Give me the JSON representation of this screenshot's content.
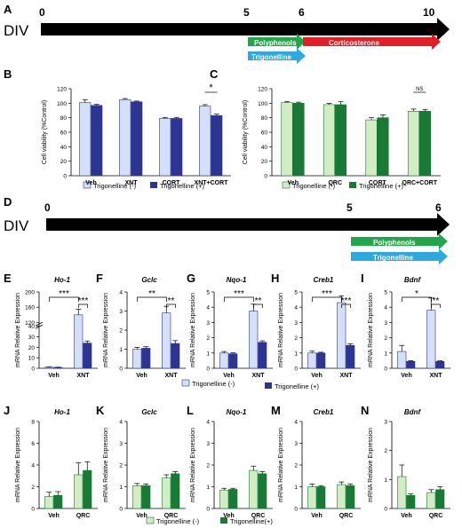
{
  "colors": {
    "lightBlue": "#d4e0f7",
    "darkBlue": "#2d3593",
    "lightGreen": "#d2ecc4",
    "darkGreen": "#177a35",
    "polyphenols": "#22a64a",
    "trigonelline": "#2ea9df",
    "corticosterone": "#e41e26",
    "axis": "#000000"
  },
  "timeline_top": {
    "panel": "A",
    "label": "DIV",
    "ticks": [
      "0",
      "5",
      "6",
      "10"
    ],
    "bars": {
      "polyphenols": "Polyphenols",
      "corticosterone": "Corticosterone",
      "trigonelline": "Trigonelline"
    }
  },
  "timeline_mid": {
    "panel": "D",
    "label": "DIV",
    "ticks": [
      "0",
      "5",
      "6"
    ],
    "bars": {
      "polyphenols": "Polyphenols",
      "trigonelline": "Trigonelline"
    }
  },
  "legends": {
    "blue": {
      "neg": "Trigonelline (-)",
      "pos": "Trigonelline (+)"
    },
    "green_C": {
      "neg": "Trigonelline (-)",
      "pos": "Trigonelline (+)"
    },
    "green_bottom": {
      "neg": "Trigonelline (-)",
      "pos": "Trigonelline(+)"
    }
  },
  "chart_data": [
    {
      "panel": "B",
      "type": "bar",
      "palette": "blue",
      "ylabel": "Cell viability (%Control)",
      "ylim": [
        0,
        120
      ],
      "yticks": [
        "0",
        "20",
        "40",
        "60",
        "80",
        "100",
        "120"
      ],
      "categories": [
        "Veh",
        "XNT",
        "CORT",
        "XNT+CORT"
      ],
      "series": [
        {
          "name": "Trigonelline (-)",
          "values": [
            101,
            105,
            79,
            96
          ],
          "errors": [
            4,
            1.5,
            1.5,
            2
          ]
        },
        {
          "name": "Trigonelline (+)",
          "values": [
            97,
            102,
            79,
            83
          ],
          "errors": [
            1.5,
            1,
            1.5,
            2
          ]
        }
      ],
      "annotations": [
        {
          "cat": 3,
          "text": "*"
        }
      ]
    },
    {
      "panel": "C",
      "type": "bar",
      "palette": "green",
      "ylabel": "Cell viability (%Control)",
      "ylim": [
        0,
        120
      ],
      "yticks": [
        "0",
        "20",
        "40",
        "60",
        "80",
        "100",
        "120"
      ],
      "categories": [
        "Veh",
        "QRC",
        "CORT",
        "QRC+CORT"
      ],
      "series": [
        {
          "name": "Trigonelline (-)",
          "values": [
            101,
            98,
            77,
            89
          ],
          "errors": [
            1.5,
            2,
            3,
            3
          ]
        },
        {
          "name": "Trigonelline (+)",
          "values": [
            100,
            98,
            80,
            89
          ],
          "errors": [
            1.5,
            4,
            4,
            2.5
          ]
        }
      ],
      "annotations": [
        {
          "cat": 3,
          "text": "NS"
        }
      ]
    },
    {
      "panel": "E",
      "type": "bar",
      "palette": "blue",
      "gene": "Ho-1",
      "ylabel": "mRNA Relative Expression",
      "ylim": [
        0,
        200
      ],
      "yticks": [
        "0",
        "10",
        "20",
        "30",
        "40",
        "120",
        "160",
        "200"
      ],
      "broken_axis": true,
      "categories": [
        "Veh",
        "XNT"
      ],
      "series": [
        {
          "name": "Trigonelline (-)",
          "values": [
            1,
            140
          ],
          "errors": [
            0.3,
            15
          ]
        },
        {
          "name": "Trigonelline (+)",
          "values": [
            0.8,
            24
          ],
          "errors": [
            0.2,
            2
          ]
        }
      ],
      "annotations": [
        {
          "text": "***"
        },
        {
          "text": "***"
        }
      ]
    },
    {
      "panel": "F",
      "type": "bar",
      "palette": "blue",
      "gene": "Gclc",
      "ylabel": "mRNA Relative Expression",
      "ylim": [
        0,
        4
      ],
      "yticks": [
        "0",
        "1",
        "2",
        "3",
        "4"
      ],
      "categories": [
        "Veh",
        "XNT"
      ],
      "series": [
        {
          "name": "Trigonelline (-)",
          "values": [
            1.0,
            2.9
          ],
          "errors": [
            0.1,
            0.35
          ]
        },
        {
          "name": "Trigonelline (+)",
          "values": [
            1.05,
            1.3
          ],
          "errors": [
            0.08,
            0.15
          ]
        }
      ],
      "annotations": [
        {
          "text": "**"
        },
        {
          "text": "**"
        }
      ]
    },
    {
      "panel": "G",
      "type": "bar",
      "palette": "blue",
      "gene": "Nqo-1",
      "ylabel": "mRNA Relative Expression",
      "ylim": [
        0,
        5
      ],
      "yticks": [
        "0",
        "1",
        "2",
        "3",
        "4",
        "5"
      ],
      "categories": [
        "Veh",
        "XNT"
      ],
      "series": [
        {
          "name": "Trigonelline (-)",
          "values": [
            1.0,
            3.75
          ],
          "errors": [
            0.1,
            0.45
          ]
        },
        {
          "name": "Trigonelline (+)",
          "values": [
            0.95,
            1.7
          ],
          "errors": [
            0.06,
            0.1
          ]
        }
      ],
      "annotations": [
        {
          "text": "***"
        },
        {
          "text": "**"
        }
      ]
    },
    {
      "panel": "H",
      "type": "bar",
      "palette": "blue",
      "gene": "Creb1",
      "ylabel": "mRNA Relative Expression",
      "ylim": [
        0,
        5
      ],
      "yticks": [
        "0",
        "1",
        "2",
        "3",
        "4",
        "5"
      ],
      "categories": [
        "Veh",
        "XNT"
      ],
      "series": [
        {
          "name": "Trigonelline (-)",
          "values": [
            1.0,
            4.3
          ],
          "errors": [
            0.12,
            0.45
          ]
        },
        {
          "name": "Trigonelline (+)",
          "values": [
            1.0,
            1.5
          ],
          "errors": [
            0.05,
            0.1
          ]
        }
      ],
      "annotations": [
        {
          "text": "***"
        },
        {
          "text": "***"
        }
      ]
    },
    {
      "panel": "I",
      "type": "bar",
      "palette": "blue",
      "gene": "Bdnf",
      "ylabel": "mRNA Relative Expression",
      "ylim": [
        0,
        5
      ],
      "yticks": [
        "0",
        "1",
        "2",
        "3",
        "4",
        "5"
      ],
      "categories": [
        "Veh",
        "XNT"
      ],
      "series": [
        {
          "name": "Trigonelline (-)",
          "values": [
            1.1,
            3.8
          ],
          "errors": [
            0.4,
            0.8
          ]
        },
        {
          "name": "Trigonelline (+)",
          "values": [
            0.45,
            0.45
          ],
          "errors": [
            0.05,
            0.04
          ]
        }
      ],
      "annotations": [
        {
          "text": "*"
        },
        {
          "text": "**"
        }
      ]
    },
    {
      "panel": "J",
      "type": "bar",
      "palette": "green",
      "gene": "Ho-1",
      "ylabel": "mRNA Relative Expression",
      "ylim": [
        0,
        8
      ],
      "yticks": [
        "0",
        "2",
        "4",
        "6",
        "8"
      ],
      "categories": [
        "Veh",
        "QRC"
      ],
      "series": [
        {
          "name": "Trigonelline (-)",
          "values": [
            1.1,
            3.1
          ],
          "errors": [
            0.4,
            1.1
          ]
        },
        {
          "name": "Trigonelline(+)",
          "values": [
            1.2,
            3.5
          ],
          "errors": [
            0.35,
            0.8
          ]
        }
      ]
    },
    {
      "panel": "K",
      "type": "bar",
      "palette": "green",
      "gene": "Gclc",
      "ylabel": "mRNA Relative Expression",
      "ylim": [
        0,
        4
      ],
      "yticks": [
        "0",
        "1",
        "2",
        "3",
        "4"
      ],
      "categories": [
        "Veh",
        "QRC"
      ],
      "series": [
        {
          "name": "Trigonelline (-)",
          "values": [
            1.05,
            1.4
          ],
          "errors": [
            0.1,
            0.15
          ]
        },
        {
          "name": "Trigonelline(+)",
          "values": [
            1.05,
            1.6
          ],
          "errors": [
            0.08,
            0.1
          ]
        }
      ]
    },
    {
      "panel": "L",
      "type": "bar",
      "palette": "green",
      "gene": "Nqo-1",
      "ylabel": "mRNA Relative Expression",
      "ylim": [
        0,
        4
      ],
      "yticks": [
        "0",
        "1",
        "2",
        "3",
        "4"
      ],
      "categories": [
        "Veh",
        "QRC"
      ],
      "series": [
        {
          "name": "Trigonelline (-)",
          "values": [
            0.85,
            1.75
          ],
          "errors": [
            0.08,
            0.2
          ]
        },
        {
          "name": "Trigonelline(+)",
          "values": [
            0.88,
            1.6
          ],
          "errors": [
            0.05,
            0.1
          ]
        }
      ]
    },
    {
      "panel": "M",
      "type": "bar",
      "palette": "green",
      "gene": "Creb1",
      "ylabel": "mRNA Relative Expression",
      "ylim": [
        0,
        4
      ],
      "yticks": [
        "0",
        "1",
        "2",
        "3",
        "4"
      ],
      "categories": [
        "Veh",
        "QRC"
      ],
      "series": [
        {
          "name": "Trigonelline (-)",
          "values": [
            1.0,
            1.1
          ],
          "errors": [
            0.12,
            0.12
          ]
        },
        {
          "name": "Trigonelline(+)",
          "values": [
            1.0,
            1.05
          ],
          "errors": [
            0.05,
            0.08
          ]
        }
      ]
    },
    {
      "panel": "N",
      "type": "bar",
      "palette": "green",
      "gene": "Bdnf",
      "ylabel": "mRNA Relative Expression",
      "ylim": [
        0,
        3
      ],
      "yticks": [
        "0",
        "1",
        "2",
        "3"
      ],
      "categories": [
        "Veh",
        "QRC"
      ],
      "series": [
        {
          "name": "Trigonelline (-)",
          "values": [
            1.1,
            0.55
          ],
          "errors": [
            0.4,
            0.1
          ]
        },
        {
          "name": "Trigonelline(+)",
          "values": [
            0.45,
            0.65
          ],
          "errors": [
            0.05,
            0.1
          ]
        }
      ]
    }
  ]
}
